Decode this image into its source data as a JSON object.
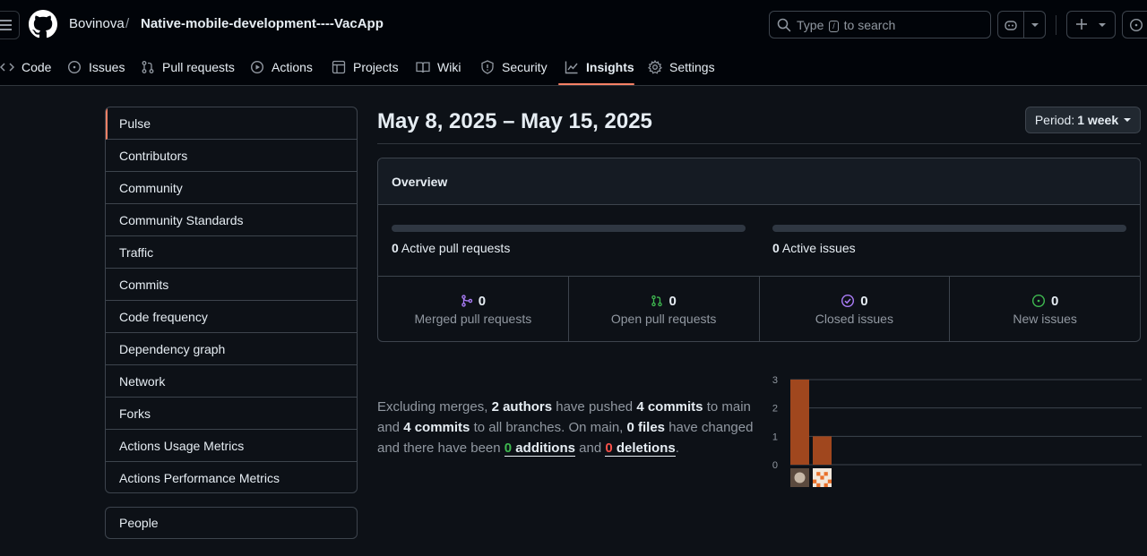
{
  "header": {
    "owner": "Bovinova",
    "separator": "/",
    "repo": "Native-mobile-development----VacApp",
    "search": {
      "prefix": "Type",
      "key": "/",
      "suffix": "to search"
    }
  },
  "tabs": [
    {
      "label": "Code",
      "icon": "code-icon"
    },
    {
      "label": "Issues",
      "icon": "issue-opened-icon"
    },
    {
      "label": "Pull requests",
      "icon": "git-pull-request-icon"
    },
    {
      "label": "Actions",
      "icon": "play-icon"
    },
    {
      "label": "Projects",
      "icon": "table-icon"
    },
    {
      "label": "Wiki",
      "icon": "book-icon"
    },
    {
      "label": "Security",
      "icon": "shield-icon"
    },
    {
      "label": "Insights",
      "icon": "graph-icon",
      "active": true
    },
    {
      "label": "Settings",
      "icon": "gear-icon"
    }
  ],
  "sidebar": {
    "items": [
      {
        "label": "Pulse",
        "selected": true
      },
      {
        "label": "Contributors"
      },
      {
        "label": "Community"
      },
      {
        "label": "Community Standards"
      },
      {
        "label": "Traffic"
      },
      {
        "label": "Commits"
      },
      {
        "label": "Code frequency"
      },
      {
        "label": "Dependency graph"
      },
      {
        "label": "Network"
      },
      {
        "label": "Forks"
      },
      {
        "label": "Actions Usage Metrics"
      },
      {
        "label": "Actions Performance Metrics"
      }
    ],
    "people": "People"
  },
  "main": {
    "title": "May 8, 2025 – May 15, 2025",
    "period": {
      "label": "Period:",
      "value": "1 week"
    }
  },
  "overview": {
    "title": "Overview",
    "active_prs": {
      "count": "0",
      "label": "Active pull requests",
      "fill": 0
    },
    "active_issues": {
      "count": "0",
      "label": "Active issues",
      "fill": 0
    },
    "stats": [
      {
        "count": "0",
        "label": "Merged pull requests",
        "icon": "git-merge-icon",
        "color": "#ab7df8"
      },
      {
        "count": "0",
        "label": "Open pull requests",
        "icon": "git-pull-request-icon",
        "color": "#3fb950"
      },
      {
        "count": "0",
        "label": "Closed issues",
        "icon": "issue-closed-icon",
        "color": "#ab7df8"
      },
      {
        "count": "0",
        "label": "New issues",
        "icon": "issue-opened-icon",
        "color": "#3fb950"
      }
    ]
  },
  "summary": {
    "t1": "Excluding merges, ",
    "authors": "2 authors",
    "t2": " have pushed ",
    "commits_main": "4 commits",
    "t3": " to main and ",
    "commits_all": "4 commits",
    "t4": " to all branches. On main, ",
    "files": "0 files",
    "t5": " have changed and there have been ",
    "additions_num": "0",
    "additions_word": " additions",
    "t6": " and ",
    "deletions_num": "0",
    "deletions_word": " deletions",
    "t7": "."
  },
  "chart_data": {
    "type": "bar",
    "categories": [
      "author-1",
      "author-2"
    ],
    "values": [
      3,
      1
    ],
    "ylim": [
      0,
      3
    ],
    "yticks": [
      "0",
      "1",
      "2",
      "3"
    ],
    "bar_color": "#a0471e",
    "grid": true
  }
}
